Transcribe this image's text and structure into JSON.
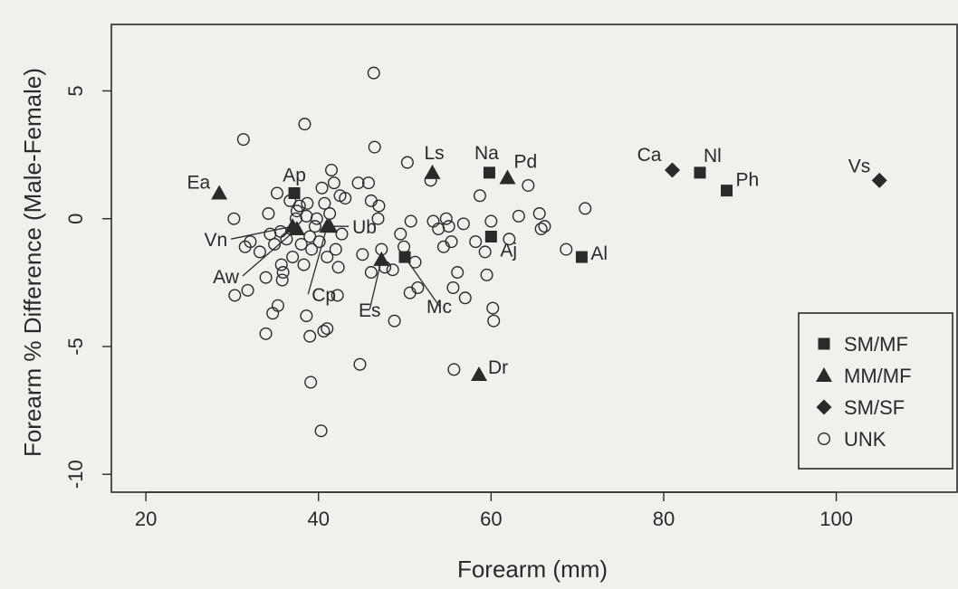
{
  "chart_data": {
    "type": "scatter",
    "xlabel": "Forearm (mm)",
    "ylabel": "Forearm % Difference (Male-Female)",
    "xlim": [
      16,
      114
    ],
    "ylim": [
      -10.7,
      7.6
    ],
    "xticks": [
      20,
      40,
      60,
      80,
      100
    ],
    "yticks": [
      -10,
      -5,
      0,
      5
    ],
    "grid": false,
    "legend_position": "bottom-right",
    "colors": {
      "ink": "#2a2a2a",
      "background": "#f2f0ec"
    },
    "legend": [
      {
        "label": "SM/MF",
        "marker": "square"
      },
      {
        "label": "MM/MF",
        "marker": "triangle"
      },
      {
        "label": "SM/SF",
        "marker": "diamond"
      },
      {
        "label": "UNK",
        "marker": "circle"
      }
    ],
    "labeled_points": [
      {
        "label": "Ea",
        "x": 28.5,
        "y": 1.0,
        "group": "MM/MF",
        "label_dx": -10,
        "label_dy": -5,
        "anchor": "end"
      },
      {
        "label": "Ap",
        "x": 37.2,
        "y": 1.0,
        "group": "SM/MF",
        "label_dx": 0,
        "label_dy": -13,
        "anchor": "middle"
      },
      {
        "label": "Vn",
        "x": 37.0,
        "y": -0.3,
        "group": "MM/MF",
        "label_dx": -72,
        "label_dy": 22,
        "anchor": "end",
        "leader": true
      },
      {
        "label": "Aw",
        "x": 37.5,
        "y": -0.4,
        "group": "MM/MF",
        "label_dx": -64,
        "label_dy": 60,
        "anchor": "end",
        "leader": true
      },
      {
        "label": "Ub",
        "x": 41.3,
        "y": -0.3,
        "group": "MM/MF",
        "label_dx": 25,
        "label_dy": 8,
        "anchor": "start",
        "leader": true
      },
      {
        "label": "Cp",
        "x": 41.0,
        "y": -0.3,
        "group": "MM/MF",
        "label_dx": -17,
        "label_dy": 83,
        "anchor": "start",
        "leader": true
      },
      {
        "label": "Es",
        "x": 47.3,
        "y": -1.6,
        "group": "MM/MF",
        "label_dx": -13,
        "label_dy": 63,
        "anchor": "middle",
        "leader": true
      },
      {
        "label": "Mc",
        "x": 50.0,
        "y": -1.5,
        "group": "SM/MF",
        "label_dx": 38,
        "label_dy": 62,
        "anchor": "middle",
        "leader": true
      },
      {
        "label": "Ls",
        "x": 53.2,
        "y": 1.8,
        "group": "MM/MF",
        "label_dx": 2,
        "label_dy": -15,
        "anchor": "middle"
      },
      {
        "label": "Na",
        "x": 59.8,
        "y": 1.8,
        "group": "SM/MF",
        "label_dx": -3,
        "label_dy": -15,
        "anchor": "middle"
      },
      {
        "label": "Pd",
        "x": 61.9,
        "y": 1.6,
        "group": "MM/MF",
        "label_dx": 7,
        "label_dy": -11,
        "anchor": "start"
      },
      {
        "label": "Aj",
        "x": 60.0,
        "y": -0.7,
        "group": "SM/MF",
        "label_dx": 10,
        "label_dy": 22,
        "anchor": "start"
      },
      {
        "label": "Al",
        "x": 70.5,
        "y": -1.5,
        "group": "SM/MF",
        "label_dx": 10,
        "label_dy": 3,
        "anchor": "start"
      },
      {
        "label": "Dr",
        "x": 58.6,
        "y": -6.1,
        "group": "MM/MF",
        "label_dx": 10,
        "label_dy": -1,
        "anchor": "start"
      },
      {
        "label": "Ca",
        "x": 81.0,
        "y": 1.9,
        "group": "SM/SF",
        "label_dx": -12,
        "label_dy": -10,
        "anchor": "end"
      },
      {
        "label": "Nl",
        "x": 84.2,
        "y": 1.8,
        "group": "SM/MF",
        "label_dx": 4,
        "label_dy": -12,
        "anchor": "start"
      },
      {
        "label": "Ph",
        "x": 87.3,
        "y": 1.1,
        "group": "SM/MF",
        "label_dx": 10,
        "label_dy": -5,
        "anchor": "start"
      },
      {
        "label": "Vs",
        "x": 105.0,
        "y": 1.5,
        "group": "SM/SF",
        "label_dx": -10,
        "label_dy": -9,
        "anchor": "end"
      }
    ],
    "unk_points": [
      [
        31.3,
        3.1
      ],
      [
        38.4,
        3.7
      ],
      [
        46.4,
        5.7
      ],
      [
        46.5,
        2.8
      ],
      [
        30.2,
        0.0
      ],
      [
        31.5,
        -1.1
      ],
      [
        32.1,
        -0.9
      ],
      [
        33.2,
        -1.3
      ],
      [
        33.9,
        -2.3
      ],
      [
        34.2,
        0.2
      ],
      [
        34.4,
        -0.6
      ],
      [
        34.9,
        -1.0
      ],
      [
        35.2,
        1.0
      ],
      [
        35.6,
        -0.5
      ],
      [
        35.7,
        -1.8
      ],
      [
        35.9,
        -2.1
      ],
      [
        36.3,
        -0.8
      ],
      [
        36.7,
        0.7
      ],
      [
        37.0,
        -1.5
      ],
      [
        37.5,
        0.3
      ],
      [
        37.8,
        0.5
      ],
      [
        38.0,
        -1.0
      ],
      [
        38.3,
        -1.8
      ],
      [
        38.6,
        0.1
      ],
      [
        38.7,
        0.6
      ],
      [
        39.0,
        -0.7
      ],
      [
        39.2,
        -1.2
      ],
      [
        39.6,
        -0.3
      ],
      [
        39.8,
        0.0
      ],
      [
        40.1,
        -0.9
      ],
      [
        40.4,
        1.2
      ],
      [
        40.7,
        0.6
      ],
      [
        41.0,
        -1.5
      ],
      [
        41.3,
        0.2
      ],
      [
        41.5,
        1.9
      ],
      [
        41.8,
        1.4
      ],
      [
        42.0,
        -1.2
      ],
      [
        42.3,
        -1.9
      ],
      [
        42.5,
        0.9
      ],
      [
        42.7,
        -0.6
      ],
      [
        43.1,
        0.8
      ],
      [
        30.3,
        -3.0
      ],
      [
        31.8,
        -2.8
      ],
      [
        33.9,
        -4.5
      ],
      [
        34.7,
        -3.7
      ],
      [
        35.3,
        -3.4
      ],
      [
        38.6,
        -3.8
      ],
      [
        39.0,
        -4.6
      ],
      [
        40.6,
        -4.4
      ],
      [
        41.0,
        -4.3
      ],
      [
        39.1,
        -6.4
      ],
      [
        44.8,
        -5.7
      ],
      [
        40.3,
        -8.3
      ],
      [
        35.8,
        -2.4
      ],
      [
        42.2,
        -3.0
      ],
      [
        44.6,
        1.4
      ],
      [
        45.8,
        1.4
      ],
      [
        46.1,
        0.7
      ],
      [
        45.1,
        -1.4
      ],
      [
        46.1,
        -2.1
      ],
      [
        46.9,
        0.0
      ],
      [
        47.0,
        0.5
      ],
      [
        47.3,
        -1.2
      ],
      [
        47.7,
        -1.9
      ],
      [
        48.6,
        -2.0
      ],
      [
        48.8,
        -4.0
      ],
      [
        49.5,
        -0.6
      ],
      [
        49.9,
        -1.1
      ],
      [
        50.3,
        2.2
      ],
      [
        50.7,
        -0.1
      ],
      [
        51.2,
        -1.7
      ],
      [
        51.5,
        -2.7
      ],
      [
        50.6,
        -2.9
      ],
      [
        53.3,
        -0.1
      ],
      [
        53.9,
        -0.4
      ],
      [
        54.5,
        -1.1
      ],
      [
        54.8,
        0.0
      ],
      [
        55.1,
        -0.3
      ],
      [
        55.4,
        -0.9
      ],
      [
        55.6,
        -2.7
      ],
      [
        56.1,
        -2.1
      ],
      [
        56.8,
        -0.2
      ],
      [
        57.0,
        -3.1
      ],
      [
        58.2,
        -0.9
      ],
      [
        58.7,
        0.9
      ],
      [
        59.3,
        -1.3
      ],
      [
        59.5,
        -2.2
      ],
      [
        60.0,
        -0.1
      ],
      [
        60.2,
        -3.5
      ],
      [
        60.3,
        -4.0
      ],
      [
        55.7,
        -5.9
      ],
      [
        62.1,
        -0.8
      ],
      [
        63.2,
        0.1
      ],
      [
        64.3,
        1.3
      ],
      [
        65.6,
        0.2
      ],
      [
        65.8,
        -0.4
      ],
      [
        66.2,
        -0.3
      ],
      [
        68.7,
        -1.2
      ],
      [
        70.9,
        0.4
      ],
      [
        53.0,
        1.5
      ],
      [
        37.4,
        0.0
      ]
    ]
  }
}
